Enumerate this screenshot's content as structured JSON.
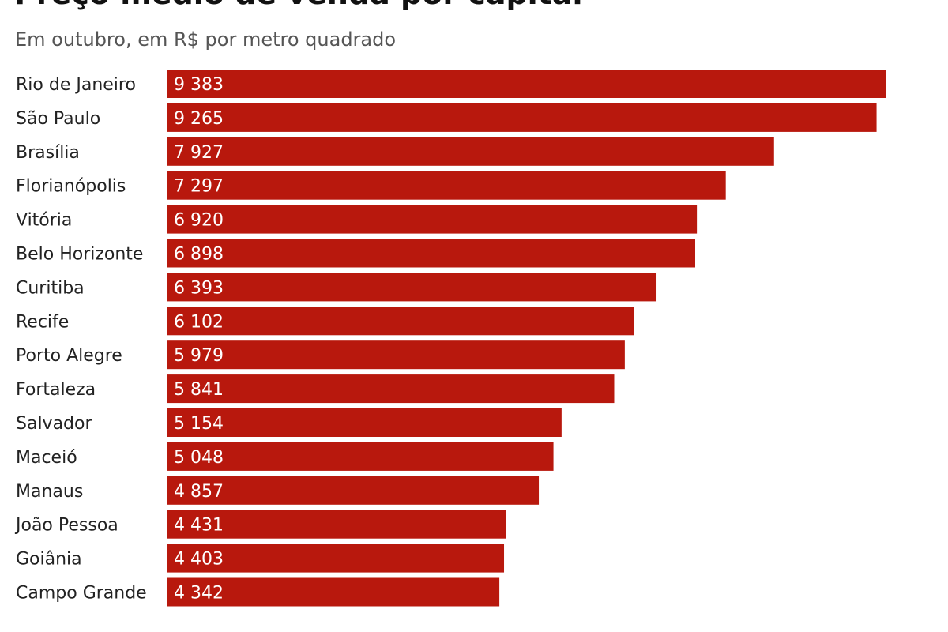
{
  "chart_data": {
    "type": "bar",
    "orientation": "horizontal",
    "title": "Preço médio de venda por capital",
    "subtitle": "Em outubro, em R$ por metro quadrado",
    "categories": [
      "Rio de Janeiro",
      "São Paulo",
      "Brasília",
      "Florianópolis",
      "Vitória",
      "Belo Horizonte",
      "Curitiba",
      "Recife",
      "Porto Alegre",
      "Fortaleza",
      "Salvador",
      "Maceió",
      "Manaus",
      "João Pessoa",
      "Goiânia",
      "Campo Grande"
    ],
    "values": [
      9383,
      9265,
      7927,
      7297,
      6920,
      6898,
      6393,
      6102,
      5979,
      5841,
      5154,
      5048,
      4857,
      4431,
      4403,
      4342
    ],
    "value_labels": [
      "9 383",
      "9 265",
      "7 927",
      "7 297",
      "6 920",
      "6 898",
      "6 393",
      "6 102",
      "5 979",
      "5 841",
      "5 154",
      "5 048",
      "4 857",
      "4 431",
      "4 403",
      "4 342"
    ],
    "xlim": [
      0,
      9383
    ],
    "grid": false,
    "bar_color": "#b8180d",
    "label_color": "#ffffff"
  }
}
